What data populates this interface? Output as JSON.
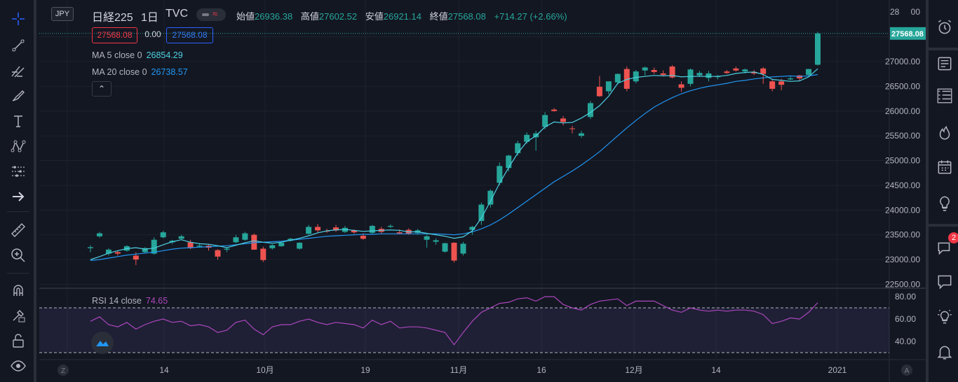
{
  "symbol": {
    "currency": "JPY",
    "name": "日経225",
    "interval": "1日",
    "exchange": "TVC",
    "live_glyph": "≈"
  },
  "ohlc": {
    "open_label": "始値",
    "open": "26936.38",
    "high_label": "高値",
    "high": "27602.52",
    "low_label": "安値",
    "low": "26921.14",
    "close_label": "終値",
    "close": "27568.08",
    "change": "+714.27 (+2.66%)"
  },
  "price_boxes": {
    "bid": "27568.08",
    "spread": "0.00",
    "ask": "27568.08"
  },
  "indicators": {
    "ma5": {
      "label": "MA 5 close 0",
      "value": "26854.29"
    },
    "ma20": {
      "label": "MA 20 close 0",
      "value": "26738.57"
    },
    "collapse_glyph": "⌃",
    "rsi": {
      "label": "RSI 14 close",
      "value": "74.65"
    }
  },
  "price_axis": {
    "top_partial": "28",
    "top_partial_tail": "00",
    "labels": [
      "27000.00",
      "26500.00",
      "26000.00",
      "25500.00",
      "25000.00",
      "24500.00",
      "24000.00",
      "23500.00",
      "23000.00",
      "22500.00"
    ],
    "current_label": "27568.08"
  },
  "rsi_axis": {
    "labels": [
      "80.00",
      "60.00",
      "40.00"
    ]
  },
  "time_axis": {
    "labels": [
      "14",
      "10月",
      "19",
      "11月",
      "16",
      "12月",
      "14",
      "2021"
    ],
    "left_btn": "Z",
    "right_btn": "A"
  },
  "right_toolbar": {
    "chat_badge": "2"
  },
  "colors": {
    "up": "#26a69a",
    "down": "#ef5350",
    "ma5": "#4dd0e1",
    "ma20": "#2196f3",
    "rsi": "#ab47bc",
    "background": "#131722",
    "grid": "#1e222d"
  },
  "chart_data": {
    "type": "candlestick",
    "title": "日経225 1日 TVC",
    "y_range": [
      22300,
      27800
    ],
    "rsi_range": [
      25,
      88
    ],
    "rsi_bands": [
      70,
      30
    ],
    "candles": [
      {
        "o": 23230,
        "h": 23290,
        "l": 23150,
        "c": 23250
      },
      {
        "o": 23470,
        "h": 23560,
        "l": 23440,
        "c": 23530
      },
      {
        "o": 23120,
        "h": 23230,
        "l": 23080,
        "c": 23200
      },
      {
        "o": 23150,
        "h": 23180,
        "l": 23080,
        "c": 23120
      },
      {
        "o": 23180,
        "h": 23290,
        "l": 23160,
        "c": 23270
      },
      {
        "o": 23080,
        "h": 23150,
        "l": 22890,
        "c": 23000
      },
      {
        "o": 23150,
        "h": 23250,
        "l": 23120,
        "c": 23230
      },
      {
        "o": 23120,
        "h": 23450,
        "l": 23100,
        "c": 23400
      },
      {
        "o": 23450,
        "h": 23580,
        "l": 23430,
        "c": 23550
      },
      {
        "o": 23350,
        "h": 23400,
        "l": 23310,
        "c": 23380
      },
      {
        "o": 23420,
        "h": 23500,
        "l": 23400,
        "c": 23470
      },
      {
        "o": 23350,
        "h": 23400,
        "l": 23210,
        "c": 23230
      },
      {
        "o": 23260,
        "h": 23330,
        "l": 23240,
        "c": 23280
      },
      {
        "o": 23280,
        "h": 23300,
        "l": 23180,
        "c": 23240
      },
      {
        "o": 23190,
        "h": 23210,
        "l": 23000,
        "c": 23060
      },
      {
        "o": 23200,
        "h": 23240,
        "l": 23150,
        "c": 23220
      },
      {
        "o": 23350,
        "h": 23500,
        "l": 23330,
        "c": 23450
      },
      {
        "o": 23400,
        "h": 23560,
        "l": 23380,
        "c": 23530
      },
      {
        "o": 23500,
        "h": 23530,
        "l": 23200,
        "c": 23200
      },
      {
        "o": 23220,
        "h": 23260,
        "l": 22950,
        "c": 22990
      },
      {
        "o": 23230,
        "h": 23310,
        "l": 23200,
        "c": 23290
      },
      {
        "o": 23270,
        "h": 23360,
        "l": 23260,
        "c": 23340
      },
      {
        "o": 23380,
        "h": 23440,
        "l": 23360,
        "c": 23420
      },
      {
        "o": 23220,
        "h": 23350,
        "l": 23200,
        "c": 23340
      },
      {
        "o": 23520,
        "h": 23700,
        "l": 23500,
        "c": 23660
      },
      {
        "o": 23660,
        "h": 23720,
        "l": 23550,
        "c": 23590
      },
      {
        "o": 23580,
        "h": 23620,
        "l": 23540,
        "c": 23570
      },
      {
        "o": 23650,
        "h": 23700,
        "l": 23560,
        "c": 23590
      },
      {
        "o": 23560,
        "h": 23680,
        "l": 23540,
        "c": 23640
      },
      {
        "o": 23590,
        "h": 23610,
        "l": 23520,
        "c": 23550
      },
      {
        "o": 23480,
        "h": 23530,
        "l": 23400,
        "c": 23420
      },
      {
        "o": 23540,
        "h": 23700,
        "l": 23510,
        "c": 23680
      },
      {
        "o": 23620,
        "h": 23660,
        "l": 23520,
        "c": 23560
      },
      {
        "o": 23660,
        "h": 23710,
        "l": 23640,
        "c": 23680
      },
      {
        "o": 23550,
        "h": 23610,
        "l": 23510,
        "c": 23530
      },
      {
        "o": 23600,
        "h": 23630,
        "l": 23500,
        "c": 23520
      },
      {
        "o": 23540,
        "h": 23620,
        "l": 23500,
        "c": 23590
      },
      {
        "o": 23400,
        "h": 23500,
        "l": 23240,
        "c": 23470
      },
      {
        "o": 23360,
        "h": 23430,
        "l": 23300,
        "c": 23390
      },
      {
        "o": 23160,
        "h": 23340,
        "l": 23140,
        "c": 23330
      },
      {
        "o": 23340,
        "h": 23350,
        "l": 22940,
        "c": 22980
      },
      {
        "o": 23120,
        "h": 23360,
        "l": 23080,
        "c": 23320
      },
      {
        "o": 23600,
        "h": 23680,
        "l": 23500,
        "c": 23660
      },
      {
        "o": 23780,
        "h": 24150,
        "l": 23700,
        "c": 24110
      },
      {
        "o": 24110,
        "h": 24420,
        "l": 24050,
        "c": 24390
      },
      {
        "o": 24550,
        "h": 24960,
        "l": 24500,
        "c": 24890
      },
      {
        "o": 24850,
        "h": 25120,
        "l": 24780,
        "c": 25100
      },
      {
        "o": 25150,
        "h": 25400,
        "l": 25100,
        "c": 25350
      },
      {
        "o": 25380,
        "h": 25570,
        "l": 25340,
        "c": 25520
      },
      {
        "o": 25470,
        "h": 25600,
        "l": 25200,
        "c": 25550
      },
      {
        "o": 25680,
        "h": 25980,
        "l": 25630,
        "c": 25920
      },
      {
        "o": 26030,
        "h": 26060,
        "l": 25990,
        "c": 26000
      },
      {
        "o": 25850,
        "h": 25900,
        "l": 25710,
        "c": 25780
      },
      {
        "o": 25650,
        "h": 25700,
        "l": 25550,
        "c": 25640
      },
      {
        "o": 25500,
        "h": 25600,
        "l": 25460,
        "c": 25550
      },
      {
        "o": 25880,
        "h": 26200,
        "l": 25840,
        "c": 26160
      },
      {
        "o": 26490,
        "h": 26710,
        "l": 26290,
        "c": 26300
      },
      {
        "o": 26400,
        "h": 26600,
        "l": 26340,
        "c": 26600
      },
      {
        "o": 26580,
        "h": 26760,
        "l": 26540,
        "c": 26750
      },
      {
        "o": 26850,
        "h": 26900,
        "l": 26400,
        "c": 26450
      },
      {
        "o": 26600,
        "h": 26830,
        "l": 26560,
        "c": 26800
      },
      {
        "o": 26820,
        "h": 26900,
        "l": 26720,
        "c": 26880
      },
      {
        "o": 26830,
        "h": 26880,
        "l": 26750,
        "c": 26790
      },
      {
        "o": 26760,
        "h": 26820,
        "l": 26710,
        "c": 26730
      },
      {
        "o": 26900,
        "h": 26930,
        "l": 26660,
        "c": 26680
      },
      {
        "o": 26540,
        "h": 26600,
        "l": 26390,
        "c": 26470
      },
      {
        "o": 26550,
        "h": 26860,
        "l": 26500,
        "c": 26840
      },
      {
        "o": 26720,
        "h": 26810,
        "l": 26690,
        "c": 26770
      },
      {
        "o": 26670,
        "h": 26810,
        "l": 26600,
        "c": 26760
      },
      {
        "o": 26690,
        "h": 26730,
        "l": 26640,
        "c": 26700
      },
      {
        "o": 26800,
        "h": 26830,
        "l": 26750,
        "c": 26770
      },
      {
        "o": 26860,
        "h": 26900,
        "l": 26800,
        "c": 26820
      },
      {
        "o": 26800,
        "h": 26860,
        "l": 26760,
        "c": 26840
      },
      {
        "o": 26790,
        "h": 26830,
        "l": 26730,
        "c": 26760
      },
      {
        "o": 26860,
        "h": 26890,
        "l": 26550,
        "c": 26750
      },
      {
        "o": 26600,
        "h": 26650,
        "l": 26400,
        "c": 26450
      },
      {
        "o": 26600,
        "h": 26650,
        "l": 26420,
        "c": 26530
      },
      {
        "o": 26640,
        "h": 26700,
        "l": 26620,
        "c": 26660
      },
      {
        "o": 26720,
        "h": 26730,
        "l": 26620,
        "c": 26660
      },
      {
        "o": 26730,
        "h": 26850,
        "l": 26700,
        "c": 26850
      },
      {
        "o": 26936.38,
        "h": 27602.52,
        "l": 26921.14,
        "c": 27568.08
      }
    ],
    "ma5": [
      23000,
      23060,
      23130,
      23180,
      23220,
      23240,
      23210,
      23230,
      23300,
      23360,
      23400,
      23350,
      23320,
      23310,
      23280,
      23240,
      23290,
      23340,
      23380,
      23350,
      23330,
      23350,
      23390,
      23430,
      23480,
      23540,
      23580,
      23600,
      23610,
      23590,
      23570,
      23580,
      23590,
      23600,
      23590,
      23560,
      23560,
      23530,
      23500,
      23470,
      23430,
      23460,
      23580,
      23840,
      24180,
      24540,
      24860,
      25150,
      25380,
      25500,
      25680,
      25780,
      25760,
      25770,
      25860,
      25970,
      26110,
      26300,
      26560,
      26640,
      26680,
      26700,
      26720,
      26710,
      26720,
      26690,
      26700,
      26700,
      26700,
      26700,
      26720,
      26760,
      26780,
      26790,
      26740,
      26640,
      26620,
      26600,
      26610,
      26690,
      26854.29
    ],
    "ma20": [
      22980,
      23000,
      23030,
      23060,
      23090,
      23110,
      23130,
      23150,
      23180,
      23210,
      23230,
      23240,
      23250,
      23260,
      23270,
      23280,
      23300,
      23320,
      23340,
      23350,
      23360,
      23370,
      23390,
      23410,
      23430,
      23450,
      23470,
      23480,
      23490,
      23500,
      23510,
      23510,
      23520,
      23520,
      23520,
      23520,
      23520,
      23520,
      23520,
      23510,
      23500,
      23520,
      23560,
      23620,
      23700,
      23800,
      23920,
      24050,
      24180,
      24310,
      24440,
      24570,
      24680,
      24790,
      24910,
      25040,
      25180,
      25340,
      25500,
      25660,
      25810,
      25950,
      26080,
      26180,
      26270,
      26350,
      26410,
      26460,
      26500,
      26530,
      26560,
      26600,
      26620,
      26650,
      26670,
      26690,
      26700,
      26710,
      26700,
      26710,
      26738.57
    ],
    "rsi": [
      58,
      62,
      55,
      53,
      57,
      51,
      55,
      58,
      60,
      57,
      58,
      54,
      55,
      53,
      48,
      50,
      57,
      59,
      51,
      46,
      53,
      55,
      55,
      58,
      60,
      57,
      55,
      57,
      56,
      55,
      52,
      59,
      55,
      58,
      52,
      53,
      53,
      52,
      50,
      48,
      37,
      48,
      58,
      66,
      70,
      74,
      75,
      78,
      79,
      76,
      80,
      80,
      73,
      70,
      68,
      73,
      76,
      77,
      78,
      72,
      76,
      76,
      76,
      72,
      68,
      66,
      70,
      68,
      67,
      68,
      67,
      68,
      68,
      67,
      64,
      56,
      58,
      61,
      60,
      66,
      74.65
    ]
  }
}
